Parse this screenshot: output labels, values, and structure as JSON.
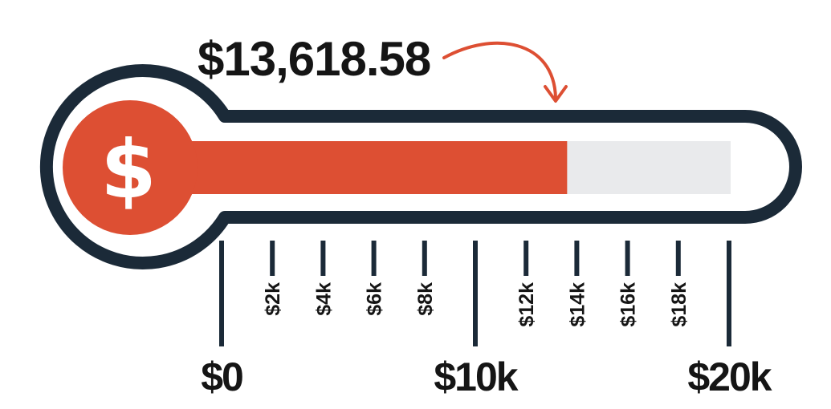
{
  "amount_label": "$13,618.58",
  "progress": {
    "value": 13618.58,
    "min": 0,
    "max": 20000
  },
  "bulb_symbol": "$",
  "major_ticks": [
    {
      "value": 0,
      "label": "$0"
    },
    {
      "value": 10000,
      "label": "$10k"
    },
    {
      "value": 20000,
      "label": "$20k"
    }
  ],
  "minor_ticks": [
    {
      "value": 2000,
      "label": "$2k"
    },
    {
      "value": 4000,
      "label": "$4k"
    },
    {
      "value": 6000,
      "label": "$6k"
    },
    {
      "value": 8000,
      "label": "$8k"
    },
    {
      "value": 12000,
      "label": "$12k"
    },
    {
      "value": 14000,
      "label": "$14k"
    },
    {
      "value": 16000,
      "label": "$16k"
    },
    {
      "value": 18000,
      "label": "$18k"
    }
  ],
  "colors": {
    "fill": "#dd4f33",
    "track": "#e9eaec",
    "outline": "#1b2a38",
    "text": "#151515",
    "arrow": "#dd4f33"
  },
  "icons": {
    "bulb": "dollar-sign-icon",
    "pointer": "curved-arrow-icon"
  }
}
